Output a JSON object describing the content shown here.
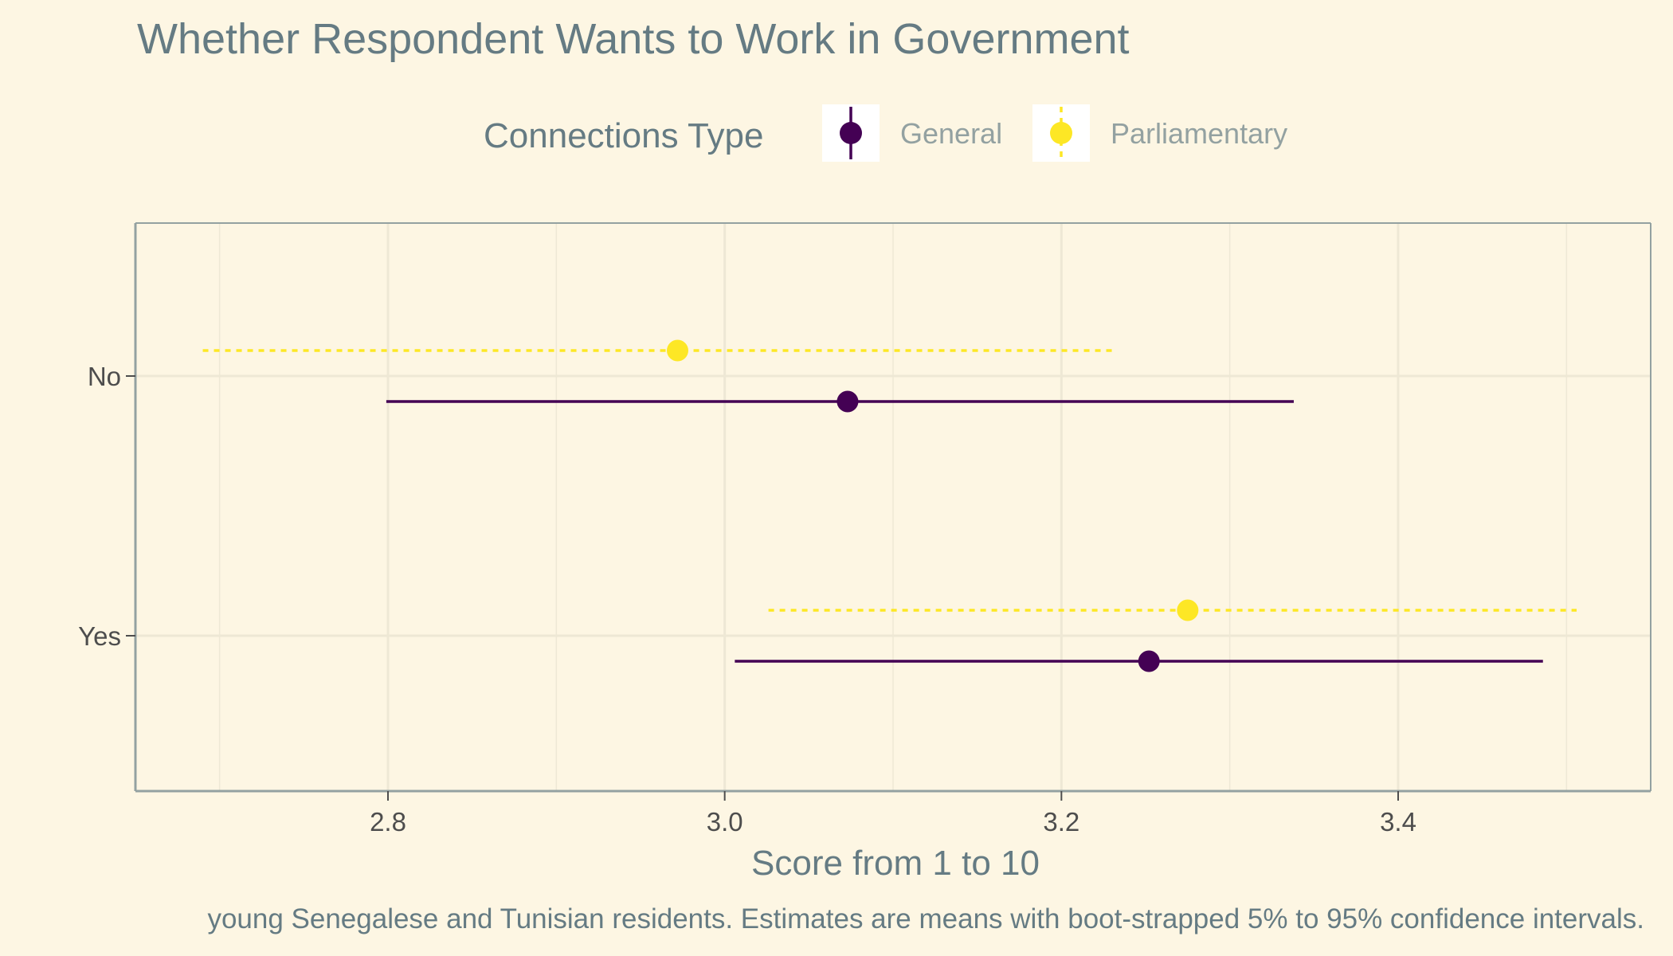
{
  "chart_data": {
    "type": "scatter",
    "subtype": "point-range",
    "title": "Whether Respondent Wants to Work in Government",
    "xlabel": "Score from 1 to 10",
    "ylabel": "",
    "caption": "young Senegalese and Tunisian residents. Estimates are means with boot-strapped 5% to 95% confidence intervals.",
    "legend": {
      "title": "Connections Type",
      "position": "top"
    },
    "xlim": [
      2.65,
      3.55
    ],
    "xticks": [
      2.8,
      3.0,
      3.2,
      3.4
    ],
    "xtick_labels": [
      "2.8",
      "3.0",
      "3.2",
      "3.4"
    ],
    "categories": [
      "No",
      "Yes"
    ],
    "grid": true,
    "series": [
      {
        "name": "General",
        "color": "#440154",
        "line_style": "solid",
        "points": [
          {
            "category": "No",
            "mean": 3.073,
            "low": 2.799,
            "high": 3.338
          },
          {
            "category": "Yes",
            "mean": 3.252,
            "low": 3.006,
            "high": 3.486
          }
        ]
      },
      {
        "name": "Parliamentary",
        "color": "#fde725",
        "line_style": "dashed",
        "points": [
          {
            "category": "No",
            "mean": 2.972,
            "low": 2.69,
            "high": 3.23
          },
          {
            "category": "Yes",
            "mean": 3.275,
            "low": 3.026,
            "high": 3.506
          }
        ]
      }
    ]
  },
  "colors": {
    "background": "#fdf6e3",
    "text": "#657b83",
    "legend_label": "#93a1a1",
    "panel_border": "#93a1a1",
    "grid": "#eee8d5"
  }
}
